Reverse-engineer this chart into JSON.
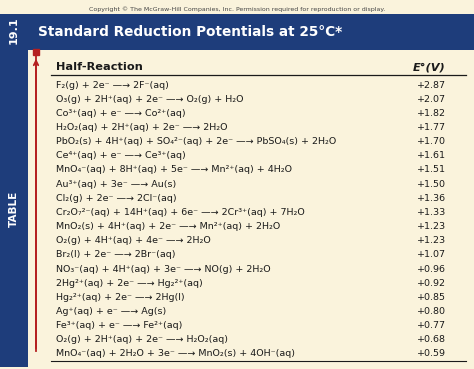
{
  "title": "Standard Reduction Potentials at 25°C*",
  "copyright": "Copyright © The McGraw-Hill Companies, Inc. Permission required for reproduction or display.",
  "table_label": "19.1",
  "col1_header": "Half-Reaction",
  "col2_header": "E°(V)",
  "reactions": [
    [
      "F₂(g) + 2e⁻ —→ 2F⁻(aq)",
      "+2.87"
    ],
    [
      "O₃(g) + 2H⁺(aq) + 2e⁻ —→ O₂(g) + H₂O",
      "+2.07"
    ],
    [
      "Co³⁺(aq) + e⁻ —→ Co²⁺(aq)",
      "+1.82"
    ],
    [
      "H₂O₂(aq) + 2H⁺(aq) + 2e⁻ —→ 2H₂O",
      "+1.77"
    ],
    [
      "PbO₂(s) + 4H⁺(aq) + SO₄²⁻(aq) + 2e⁻ —→ PbSO₄(s) + 2H₂O",
      "+1.70"
    ],
    [
      "Ce⁴⁺(aq) + e⁻ —→ Ce³⁺(aq)",
      "+1.61"
    ],
    [
      "MnO₄⁻(aq) + 8H⁺(aq) + 5e⁻ —→ Mn²⁺(aq) + 4H₂O",
      "+1.51"
    ],
    [
      "Au³⁺(aq) + 3e⁻ —→ Au(s)",
      "+1.50"
    ],
    [
      "Cl₂(g) + 2e⁻ —→ 2Cl⁻(aq)",
      "+1.36"
    ],
    [
      "Cr₂O₇²⁻(aq) + 14H⁺(aq) + 6e⁻ —→ 2Cr³⁺(aq) + 7H₂O",
      "+1.33"
    ],
    [
      "MnO₂(s) + 4H⁺(aq) + 2e⁻ —→ Mn²⁺(aq) + 2H₂O",
      "+1.23"
    ],
    [
      "O₂(g) + 4H⁺(aq) + 4e⁻ —→ 2H₂O",
      "+1.23"
    ],
    [
      "Br₂(l) + 2e⁻ —→ 2Br⁻(aq)",
      "+1.07"
    ],
    [
      "NO₃⁻(aq) + 4H⁺(aq) + 3e⁻ —→ NO(g) + 2H₂O",
      "+0.96"
    ],
    [
      "2Hg²⁺(aq) + 2e⁻ —→ Hg₂²⁺(aq)",
      "+0.92"
    ],
    [
      "Hg₂²⁺(aq) + 2e⁻ —→ 2Hg(l)",
      "+0.85"
    ],
    [
      "Ag⁺(aq) + e⁻ —→ Ag(s)",
      "+0.80"
    ],
    [
      "Fe³⁺(aq) + e⁻ —→ Fe²⁺(aq)",
      "+0.77"
    ],
    [
      "O₂(g) + 2H⁺(aq) + 2e⁻ —→ H₂O₂(aq)",
      "+0.68"
    ],
    [
      "MnO₄⁻(aq) + 2H₂O + 3e⁻ —→ MnO₂(s) + 4OH⁻(aq)",
      "+0.59"
    ]
  ],
  "bg_color": "#faf3dc",
  "header_bg": "#1e3d7b",
  "header_text_color": "#ffffff",
  "sidebar_color": "#1e3d7b",
  "red_color": "#b52020",
  "text_color": "#1a1a1a",
  "font_size_reaction": 6.8,
  "font_size_potential": 6.8,
  "font_size_col_header": 8.2,
  "font_size_title": 9.8,
  "font_size_copyright": 4.5,
  "font_size_table_label": 7.5,
  "font_size_table_num": 8.0
}
